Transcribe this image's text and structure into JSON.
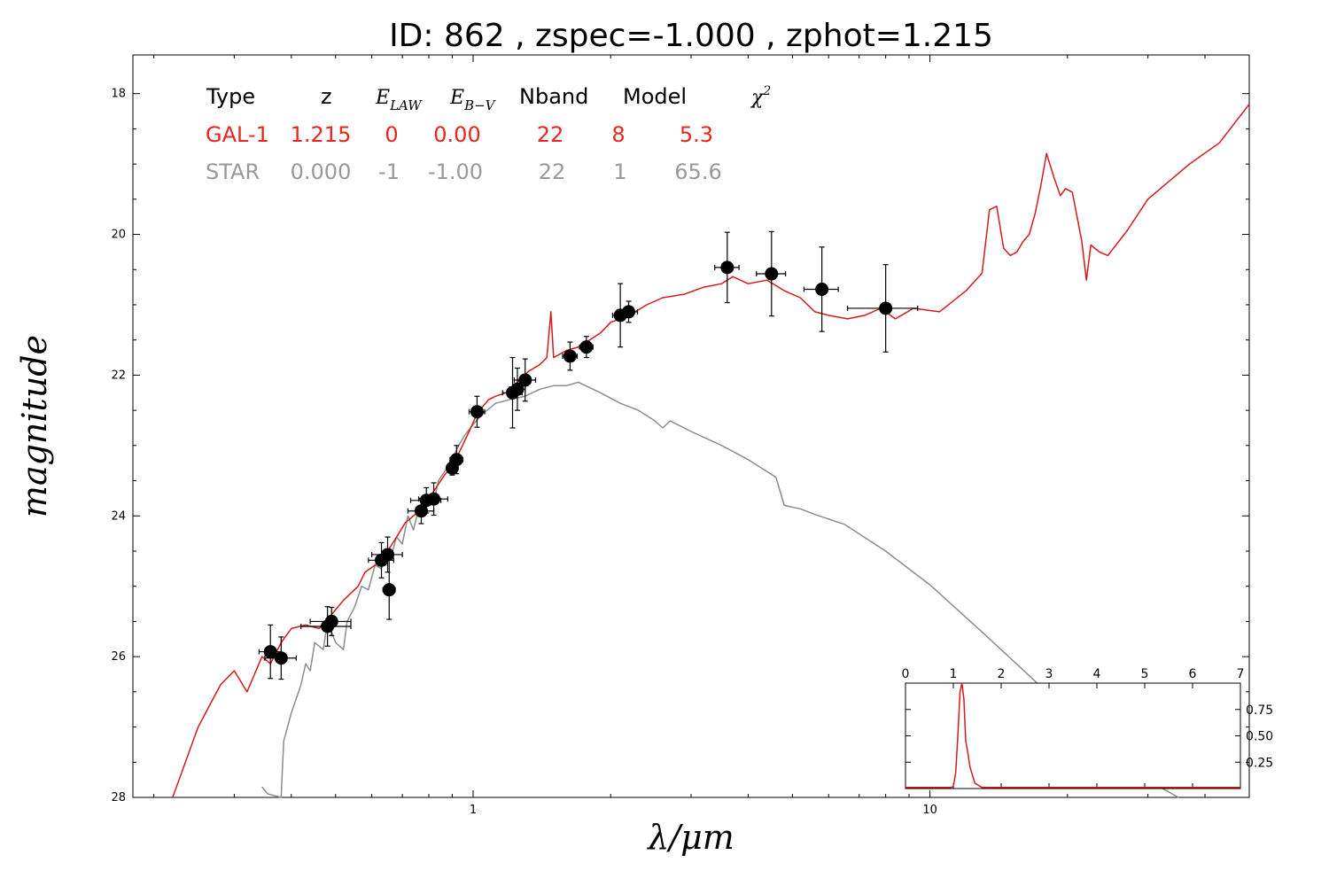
{
  "title": "ID:  862   , zspec=-1.000 , zphot=1.215",
  "axes": {
    "xlabel": "λ/μm",
    "ylabel": "magnitude"
  },
  "legend": {
    "headers": [
      "Type",
      "z",
      "E",
      "LAW",
      "E",
      "B−V",
      "Nband",
      "Model",
      "χ",
      "2"
    ],
    "rows": [
      {
        "type": "GAL-1",
        "z": "1.215",
        "elaw": "0",
        "ebv": "0.00",
        "nband": "22",
        "model": "8",
        "chi2": "5.3"
      },
      {
        "type": "STAR",
        "z": "0.000",
        "elaw": "-1",
        "ebv": "-1.00",
        "nband": "22",
        "model": "1",
        "chi2": "65.6"
      }
    ]
  },
  "colors": {
    "galaxy": "#d7191c",
    "star": "#8c8c8c",
    "points": "#000000",
    "gal_text": "#e8261e",
    "star_text": "#999999"
  },
  "chart_data": [
    {
      "type": "scatter",
      "xscale": "log",
      "xlim": [
        0.18,
        50
      ],
      "ylim": [
        28,
        17.45
      ],
      "yinverted": true,
      "yticks": [
        18,
        20,
        22,
        24,
        26,
        28
      ],
      "xtick_labels": [
        "1",
        "10"
      ],
      "xlabel": "λ/μm",
      "ylabel": "magnitude",
      "series": [
        {
          "kind": "points",
          "points": [
            {
              "x": 0.36,
              "y": 25.93,
              "xerr": 0.02,
              "yerr": 0.38
            },
            {
              "x": 0.38,
              "y": 26.02,
              "xerr": 0.03,
              "yerr": 0.3
            },
            {
              "x": 0.48,
              "y": 25.57,
              "xerr": 0.06,
              "yerr": 0.28
            },
            {
              "x": 0.49,
              "y": 25.5,
              "xerr": 0.05,
              "yerr": 0.2
            },
            {
              "x": 0.63,
              "y": 24.63,
              "xerr": 0.04,
              "yerr": 0.25
            },
            {
              "x": 0.65,
              "y": 24.55,
              "xerr": 0.05,
              "yerr": 0.25
            },
            {
              "x": 0.655,
              "y": 25.05,
              "xerr": 0.02,
              "yerr": 0.42
            },
            {
              "x": 0.77,
              "y": 23.93,
              "xerr": 0.05,
              "yerr": 0.18
            },
            {
              "x": 0.79,
              "y": 23.78,
              "xerr": 0.06,
              "yerr": 0.18
            },
            {
              "x": 0.82,
              "y": 23.76,
              "xerr": 0.06,
              "yerr": 0.23
            },
            {
              "x": 0.9,
              "y": 23.32,
              "xerr": 0.02,
              "yerr": 0.1
            },
            {
              "x": 0.92,
              "y": 23.2,
              "xerr": 0.03,
              "yerr": 0.2
            },
            {
              "x": 1.02,
              "y": 22.52,
              "xerr": 0.04,
              "yerr": 0.22
            },
            {
              "x": 1.22,
              "y": 22.25,
              "xerr": 0.06,
              "yerr": 0.5
            },
            {
              "x": 1.25,
              "y": 22.2,
              "xerr": 0.05,
              "yerr": 0.3
            },
            {
              "x": 1.3,
              "y": 22.07,
              "xerr": 0.07,
              "yerr": 0.3
            },
            {
              "x": 1.63,
              "y": 21.73,
              "xerr": 0.06,
              "yerr": 0.2
            },
            {
              "x": 1.77,
              "y": 21.6,
              "xerr": 0.06,
              "yerr": 0.15
            },
            {
              "x": 2.1,
              "y": 21.15,
              "xerr": 0.08,
              "yerr": 0.45
            },
            {
              "x": 2.19,
              "y": 21.1,
              "xerr": 0.1,
              "yerr": 0.15
            },
            {
              "x": 3.6,
              "y": 20.47,
              "xerr": 0.22,
              "yerr": 0.5
            },
            {
              "x": 4.5,
              "y": 20.56,
              "xerr": 0.33,
              "yerr": 0.6
            },
            {
              "x": 5.8,
              "y": 20.78,
              "xerr": 0.5,
              "yerr": 0.6
            },
            {
              "x": 8.0,
              "y": 21.05,
              "xerr": 1.4,
              "yerr": 0.62
            }
          ]
        },
        {
          "kind": "line",
          "model": "GAL-1",
          "points": [
            [
              0.22,
              28.0
            ],
            [
              0.25,
              27.0
            ],
            [
              0.28,
              26.4
            ],
            [
              0.3,
              26.2
            ],
            [
              0.32,
              26.5
            ],
            [
              0.345,
              26.0
            ],
            [
              0.36,
              26.1
            ],
            [
              0.38,
              25.8
            ],
            [
              0.4,
              25.6
            ],
            [
              0.43,
              25.55
            ],
            [
              0.46,
              25.6
            ],
            [
              0.49,
              25.4
            ],
            [
              0.52,
              25.2
            ],
            [
              0.56,
              25.0
            ],
            [
              0.58,
              24.8
            ],
            [
              0.61,
              24.7
            ],
            [
              0.65,
              24.5
            ],
            [
              0.68,
              24.3
            ],
            [
              0.71,
              24.1
            ],
            [
              0.74,
              24.0
            ],
            [
              0.77,
              23.9
            ],
            [
              0.8,
              23.75
            ],
            [
              0.84,
              23.55
            ],
            [
              0.87,
              23.4
            ],
            [
              0.9,
              23.3
            ],
            [
              0.94,
              23.05
            ],
            [
              0.98,
              22.8
            ],
            [
              1.02,
              22.55
            ],
            [
              1.08,
              22.35
            ],
            [
              1.12,
              22.3
            ],
            [
              1.18,
              22.25
            ],
            [
              1.25,
              22.1
            ],
            [
              1.32,
              21.95
            ],
            [
              1.4,
              21.85
            ],
            [
              1.45,
              21.75
            ],
            [
              1.48,
              21.1
            ],
            [
              1.5,
              21.75
            ],
            [
              1.6,
              21.65
            ],
            [
              1.7,
              21.6
            ],
            [
              1.8,
              21.5
            ],
            [
              1.9,
              21.4
            ],
            [
              2.0,
              21.25
            ],
            [
              2.2,
              21.15
            ],
            [
              2.4,
              21.0
            ],
            [
              2.6,
              20.9
            ],
            [
              2.9,
              20.85
            ],
            [
              3.2,
              20.75
            ],
            [
              3.5,
              20.7
            ],
            [
              3.7,
              20.6
            ],
            [
              4.0,
              20.7
            ],
            [
              4.4,
              20.65
            ],
            [
              4.8,
              20.8
            ],
            [
              5.2,
              20.9
            ],
            [
              5.6,
              21.1
            ],
            [
              6.0,
              21.15
            ],
            [
              6.6,
              21.2
            ],
            [
              7.2,
              21.15
            ],
            [
              7.8,
              21.05
            ],
            [
              8.4,
              21.2
            ],
            [
              9.2,
              21.05
            ],
            [
              10.5,
              21.1
            ],
            [
              12.0,
              20.8
            ],
            [
              13.0,
              20.55
            ],
            [
              13.5,
              19.65
            ],
            [
              14.0,
              19.6
            ],
            [
              14.5,
              20.2
            ],
            [
              15.0,
              20.3
            ],
            [
              15.5,
              20.25
            ],
            [
              16.0,
              20.1
            ],
            [
              16.5,
              20.0
            ],
            [
              17.0,
              19.7
            ],
            [
              17.5,
              19.3
            ],
            [
              18.0,
              18.85
            ],
            [
              18.7,
              19.2
            ],
            [
              19.3,
              19.45
            ],
            [
              19.8,
              19.35
            ],
            [
              20.5,
              19.4
            ],
            [
              21.5,
              20.1
            ],
            [
              22.0,
              20.65
            ],
            [
              22.5,
              20.15
            ],
            [
              23.5,
              20.25
            ],
            [
              24.5,
              20.3
            ],
            [
              27.0,
              19.95
            ],
            [
              30.0,
              19.5
            ],
            [
              37.0,
              19.0
            ],
            [
              43.0,
              18.7
            ],
            [
              50.0,
              18.15
            ]
          ]
        },
        {
          "kind": "line",
          "model": "STAR",
          "points": [
            [
              0.345,
              27.85
            ],
            [
              0.355,
              27.95
            ],
            [
              0.38,
              28.0
            ],
            [
              0.385,
              27.2
            ],
            [
              0.4,
              26.8
            ],
            [
              0.42,
              26.4
            ],
            [
              0.43,
              26.1
            ],
            [
              0.44,
              26.2
            ],
            [
              0.45,
              25.8
            ],
            [
              0.47,
              25.9
            ],
            [
              0.48,
              25.5
            ],
            [
              0.5,
              25.8
            ],
            [
              0.52,
              25.9
            ],
            [
              0.53,
              25.5
            ],
            [
              0.55,
              25.3
            ],
            [
              0.57,
              25.0
            ],
            [
              0.59,
              25.05
            ],
            [
              0.61,
              24.7
            ],
            [
              0.63,
              24.75
            ],
            [
              0.64,
              24.5
            ],
            [
              0.66,
              24.6
            ],
            [
              0.68,
              24.3
            ],
            [
              0.7,
              24.4
            ],
            [
              0.72,
              24.0
            ],
            [
              0.74,
              24.2
            ],
            [
              0.76,
              23.9
            ],
            [
              0.78,
              23.95
            ],
            [
              0.8,
              23.7
            ],
            [
              0.82,
              23.8
            ],
            [
              0.84,
              23.5
            ],
            [
              0.86,
              23.4
            ],
            [
              0.88,
              23.3
            ],
            [
              0.9,
              23.2
            ],
            [
              0.93,
              23.0
            ],
            [
              0.96,
              22.85
            ],
            [
              1.0,
              22.7
            ],
            [
              1.05,
              22.55
            ],
            [
              1.12,
              22.4
            ],
            [
              1.2,
              22.35
            ],
            [
              1.3,
              22.3
            ],
            [
              1.4,
              22.2
            ],
            [
              1.5,
              22.15
            ],
            [
              1.6,
              22.15
            ],
            [
              1.7,
              22.1
            ],
            [
              1.9,
              22.25
            ],
            [
              2.1,
              22.4
            ],
            [
              2.3,
              22.5
            ],
            [
              2.5,
              22.65
            ],
            [
              2.6,
              22.75
            ],
            [
              2.7,
              22.65
            ],
            [
              3.0,
              22.8
            ],
            [
              3.5,
              23.0
            ],
            [
              4.0,
              23.2
            ],
            [
              4.6,
              23.45
            ],
            [
              4.8,
              23.85
            ],
            [
              5.2,
              23.9
            ],
            [
              5.6,
              23.98
            ],
            [
              6.5,
              24.12
            ],
            [
              8.0,
              24.5
            ],
            [
              10.0,
              24.98
            ],
            [
              13.0,
              25.65
            ],
            [
              17.0,
              26.35
            ],
            [
              22.0,
              27.05
            ],
            [
              28.0,
              27.65
            ],
            [
              35.0,
              28.0
            ]
          ]
        }
      ]
    },
    {
      "type": "line",
      "name": "inset",
      "xlim": [
        0,
        7
      ],
      "ylim": [
        0,
        1.0
      ],
      "xticks": [
        0,
        1,
        2,
        3,
        4,
        5,
        6,
        7
      ],
      "yticks": [
        0.25,
        0.5,
        0.75
      ],
      "ytick_labels": [
        "0.25",
        "0.50",
        "0.75"
      ],
      "series": [
        {
          "kind": "line",
          "points": [
            [
              0.0,
              0.01
            ],
            [
              0.95,
              0.01
            ],
            [
              1.0,
              0.02
            ],
            [
              1.05,
              0.15
            ],
            [
              1.1,
              0.55
            ],
            [
              1.14,
              0.92
            ],
            [
              1.18,
              1.0
            ],
            [
              1.22,
              0.85
            ],
            [
              1.26,
              0.45
            ],
            [
              1.3,
              0.35
            ],
            [
              1.35,
              0.2
            ],
            [
              1.45,
              0.05
            ],
            [
              1.6,
              0.01
            ],
            [
              7.0,
              0.01
            ]
          ]
        }
      ]
    }
  ]
}
